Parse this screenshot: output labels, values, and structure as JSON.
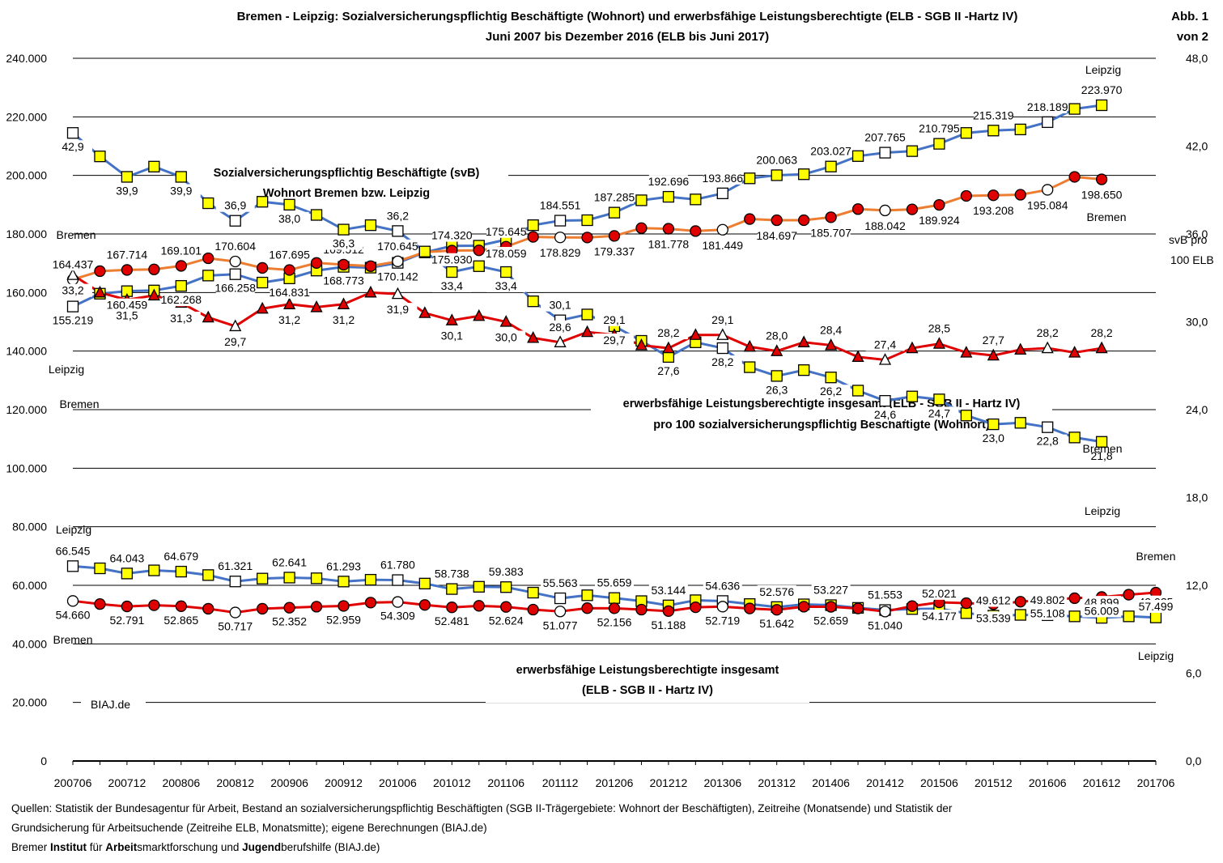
{
  "title": {
    "line1": "Bremen - Leipzig: Sozialversicherungspflichtig Beschäftigte (Wohnort) und erwerbsfähige Leistungsberechtigte (ELB - SGB II -Hartz IV)",
    "line2": "Juni 2007 bis Dezember 2016 (ELB bis Juni 2017)"
  },
  "figure_label": {
    "line1": "Abb. 1",
    "line2": "von 2"
  },
  "sources": {
    "line1": "Quellen: Statistik der Bundesagentur für Arbeit, Bestand an sozialversicherungspflichtig Beschäftigten (SGB II-Trägergebiete: Wohnort der Beschäftigten), Zeitreihe (Monatsende) und Statistik der",
    "line2": "Grundsicherung für Arbeitsuchende (Zeitreihe ELB, Monatsmitte); eigene Berechnungen (BIAJ.de)",
    "line3_parts": [
      {
        "text": "Bremer ",
        "bold": false
      },
      {
        "text": "Institut",
        "bold": true
      },
      {
        "text": " für ",
        "bold": false
      },
      {
        "text": "Arbeit",
        "bold": true
      },
      {
        "text": "smarktforschung und ",
        "bold": false
      },
      {
        "text": "Jugend",
        "bold": true
      },
      {
        "text": "berufshilfe (BIAJ.de)",
        "bold": false
      }
    ]
  },
  "colors": {
    "blue": "#4472C4",
    "orange": "#ED7D31",
    "red": "#E00000",
    "yellow": "#FFFF00",
    "grid": "#000000"
  },
  "chart_data": {
    "type": "line",
    "x_categories": [
      "200706",
      "200709",
      "200712",
      "200803",
      "200806",
      "200809",
      "200812",
      "200903",
      "200906",
      "200909",
      "200912",
      "201003",
      "201006",
      "201009",
      "201012",
      "201103",
      "201106",
      "201109",
      "201112",
      "201203",
      "201206",
      "201209",
      "201212",
      "201303",
      "201306",
      "201309",
      "201312",
      "201403",
      "201406",
      "201409",
      "201412",
      "201503",
      "201506",
      "201509",
      "201512",
      "201603",
      "201606",
      "201609",
      "201612",
      "201703",
      "201706"
    ],
    "x_tick_labels": [
      "200706",
      "200712",
      "200806",
      "200812",
      "200906",
      "200912",
      "201006",
      "201012",
      "201106",
      "201112",
      "201206",
      "201212",
      "201306",
      "201312",
      "201406",
      "201412",
      "201506",
      "201512",
      "201606",
      "201612",
      "201706"
    ],
    "y_left": {
      "min": 0,
      "max": 240000,
      "ticks": [
        "0",
        "20.000",
        "40.000",
        "60.000",
        "80.000",
        "100.000",
        "120.000",
        "140.000",
        "160.000",
        "180.000",
        "200.000",
        "220.000",
        "240.000"
      ]
    },
    "y_right": {
      "min": 0,
      "max": 48,
      "ticks": [
        "0,0",
        "6,0",
        "12,0",
        "18,0",
        "24,0",
        "30,0",
        "36,0",
        "42,0",
        "48,0"
      ],
      "title_line1": "svB  pro",
      "title_line2": "100  ELB"
    },
    "section_labels": {
      "svb_line1": "Sozialversicherungspflichtig Beschäftigte (svB)",
      "svb_line2": "Wohnort Bremen bzw. Leipzig",
      "ratio_line1": "erwerbsfähige Leistungsberechtigte insgesamt (ELB - SGB II - Hartz IV)",
      "ratio_line2": "pro 100 sozialversicherungspflichtig Beschäftigte (Wohnort)",
      "elb_line1": "erwerbsfähige Leistungsberechtigte insgesamt",
      "elb_line2": "(ELB - SGB II - Hartz IV)",
      "watermark": "BIAJ.de"
    },
    "series": [
      {
        "key": "svb_leipzig",
        "axis": "left",
        "values": [
          155219,
          159600,
          160459,
          160700,
          162268,
          165800,
          166258,
          163400,
          164831,
          167500,
          168773,
          168500,
          170142,
          173700,
          175930,
          176000,
          178059,
          183000,
          184551,
          184700,
          187285,
          191500,
          192696,
          191800,
          193866,
          199000,
          200063,
          200400,
          203027,
          206600,
          207765,
          208300,
          210795,
          214500,
          215319,
          215700,
          218189,
          222700,
          223970,
          null,
          null
        ],
        "labels": [
          "155.219",
          "",
          "160.459",
          "",
          "162.268",
          "",
          "166.258",
          "",
          "164.831",
          "",
          "168.773",
          "",
          "170.142",
          "",
          "175.930",
          "",
          "178.059",
          "",
          "184.551",
          "",
          "187.285",
          "",
          "192.696",
          "",
          "193.866",
          "",
          "200.063",
          "",
          "203.027",
          "",
          "207.765",
          "",
          "210.795",
          "",
          "215.319",
          "",
          "218.189",
          "",
          "223.970",
          "",
          ""
        ]
      },
      {
        "key": "svb_bremen",
        "axis": "left",
        "values": [
          164437,
          167300,
          167714,
          167900,
          169101,
          171700,
          170604,
          168400,
          167695,
          170100,
          169512,
          169000,
          170645,
          173800,
          174320,
          174400,
          175645,
          179000,
          178829,
          178800,
          179337,
          182000,
          181778,
          181000,
          181449,
          185100,
          184697,
          184700,
          185707,
          188500,
          188042,
          188400,
          189924,
          193000,
          193208,
          193400,
          195084,
          199500,
          198650,
          null,
          null
        ],
        "labels": [
          "164.437",
          "",
          "167.714",
          "",
          "169.101",
          "",
          "170.604",
          "",
          "167.695",
          "",
          "169.512",
          "",
          "170.645",
          "",
          "174.320",
          "",
          "175.645",
          "",
          "178.829",
          "",
          "179.337",
          "",
          "181.778",
          "",
          "181.449",
          "",
          "184.697",
          "",
          "185.707",
          "",
          "188.042",
          "",
          "189.924",
          "",
          "193.208",
          "",
          "195.084",
          "",
          "198.650",
          "",
          ""
        ]
      },
      {
        "key": "ratio_leipzig",
        "axis": "right",
        "values": [
          42.9,
          41.3,
          39.9,
          40.6,
          39.9,
          38.1,
          36.9,
          38.2,
          38.0,
          37.3,
          36.3,
          36.6,
          36.2,
          34.8,
          33.4,
          33.8,
          33.4,
          31.4,
          30.1,
          30.5,
          29.7,
          28.7,
          27.6,
          28.6,
          28.2,
          26.9,
          26.3,
          26.7,
          26.2,
          25.3,
          24.6,
          24.9,
          24.7,
          23.6,
          23.0,
          23.1,
          22.8,
          22.1,
          21.8,
          null,
          null
        ],
        "labels": [
          "42,9",
          "",
          "39,9",
          "",
          "39,9",
          "",
          "36,9",
          "",
          "38,0",
          "",
          "36,3",
          "",
          "36,2",
          "",
          "33,4",
          "",
          "33,4",
          "",
          "30,1",
          "",
          "29,7",
          "",
          "27,6",
          "",
          "28,2",
          "",
          "26,3",
          "",
          "26,2",
          "",
          "24,6",
          "",
          "24,7",
          "",
          "23,0",
          "",
          "22,8",
          "",
          "21,8",
          "",
          ""
        ]
      },
      {
        "key": "ratio_bremen",
        "axis": "right",
        "values": [
          33.2,
          32.0,
          31.5,
          31.8,
          31.3,
          30.3,
          29.7,
          30.9,
          31.2,
          31.0,
          31.2,
          32.0,
          31.9,
          30.6,
          30.1,
          30.4,
          30.0,
          28.9,
          28.6,
          29.3,
          29.1,
          28.4,
          28.2,
          29.1,
          29.1,
          28.3,
          28.0,
          28.6,
          28.4,
          27.6,
          27.4,
          28.2,
          28.5,
          27.9,
          27.7,
          28.1,
          28.2,
          27.9,
          28.2,
          null,
          null
        ],
        "labels": [
          "33,2",
          "",
          "31,5",
          "",
          "31,3",
          "",
          "29,7",
          "",
          "31,2",
          "",
          "31,2",
          "",
          "31,9",
          "",
          "30,1",
          "",
          "30,0",
          "",
          "28,6",
          "",
          "29,1",
          "",
          "28,2",
          "",
          "29,1",
          "",
          "28,0",
          "",
          "28,4",
          "",
          "27,4",
          "",
          "28,5",
          "",
          "27,7",
          "",
          "28,2",
          "",
          "28,2",
          "",
          ""
        ]
      },
      {
        "key": "elb_leipzig",
        "axis": "left",
        "values": [
          66545,
          65800,
          64043,
          65100,
          64679,
          63500,
          61321,
          62300,
          62641,
          62400,
          61293,
          61900,
          61780,
          60600,
          58738,
          59500,
          59383,
          57500,
          55563,
          56600,
          55659,
          54600,
          53144,
          54900,
          54636,
          53600,
          52576,
          53500,
          53227,
          52300,
          51553,
          51900,
          52021,
          50500,
          49612,
          49900,
          49802,
          49400,
          48899,
          49400,
          49025
        ],
        "labels": [
          "66.545",
          "",
          "64.043",
          "",
          "64.679",
          "",
          "61.321",
          "",
          "62.641",
          "",
          "61.293",
          "",
          "61.780",
          "",
          "58.738",
          "",
          "59.383",
          "",
          "55.563",
          "",
          "55.659",
          "",
          "53.144",
          "",
          "54.636",
          "",
          "52.576",
          "",
          "53.227",
          "",
          "51.553",
          "",
          "52.021",
          "",
          "49.612",
          "",
          "49.802",
          "",
          "48.899",
          "",
          "49.025"
        ]
      },
      {
        "key": "elb_bremen",
        "axis": "left",
        "values": [
          54660,
          53600,
          52791,
          53200,
          52865,
          52000,
          50717,
          52000,
          52352,
          52700,
          52959,
          54100,
          54309,
          53300,
          52481,
          53000,
          52624,
          51700,
          51077,
          52200,
          52156,
          51700,
          51188,
          52500,
          52719,
          52100,
          51642,
          52700,
          52659,
          52100,
          51040,
          52900,
          54177,
          53900,
          53539,
          54400,
          55108,
          55600,
          56009,
          56800,
          57499
        ],
        "labels": [
          "54.660",
          "",
          "52.791",
          "",
          "52.865",
          "",
          "50.717",
          "",
          "52.352",
          "",
          "52.959",
          "",
          "54.309",
          "",
          "52.481",
          "",
          "52.624",
          "",
          "51.077",
          "",
          "52.156",
          "",
          "51.188",
          "",
          "52.719",
          "",
          "51.642",
          "",
          "52.659",
          "",
          "51.040",
          "",
          "54.177",
          "",
          "53.539",
          "",
          "55.108",
          "",
          "56.009",
          "",
          "57.499"
        ]
      }
    ],
    "series_names": {
      "leipzig": "Leipzig",
      "bremen": "Bremen"
    }
  }
}
